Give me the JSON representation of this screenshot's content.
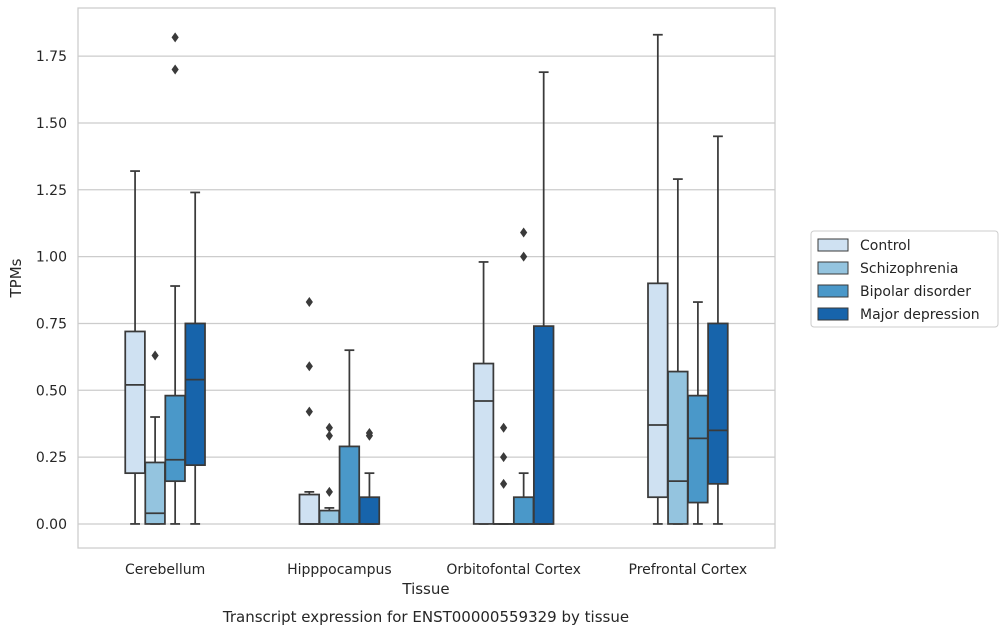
{
  "chart_data": {
    "type": "box",
    "caption": "Transcript expression for ENST00000559329 by tissue",
    "xlabel": "Tissue",
    "ylabel": "TPMs",
    "ylim": [
      -0.09,
      1.93
    ],
    "yticks": [
      "0.00",
      "0.25",
      "0.50",
      "0.75",
      "1.00",
      "1.25",
      "1.50",
      "1.75"
    ],
    "yticks_values": [
      0,
      0.25,
      0.5,
      0.75,
      1.0,
      1.25,
      1.5,
      1.75
    ],
    "grid": "horizontal",
    "legend_position": "right",
    "categories": [
      "Cerebellum",
      "Hipppocampus",
      "Orbitofontal Cortex",
      "Prefrontal Cortex"
    ],
    "series": [
      {
        "name": "Control",
        "color": "#cfe1f2",
        "boxes": [
          {
            "q1": 0.19,
            "median": 0.52,
            "q3": 0.72,
            "whislo": 0.0,
            "whishi": 1.32,
            "fliers": []
          },
          {
            "q1": 0.0,
            "median": 0.0,
            "q3": 0.11,
            "whislo": 0.0,
            "whishi": 0.12,
            "fliers": [
              0.42,
              0.59,
              0.83
            ]
          },
          {
            "q1": 0.0,
            "median": 0.46,
            "q3": 0.6,
            "whislo": 0.0,
            "whishi": 0.98,
            "fliers": []
          },
          {
            "q1": 0.1,
            "median": 0.37,
            "q3": 0.9,
            "whislo": 0.0,
            "whishi": 1.83,
            "fliers": []
          }
        ]
      },
      {
        "name": "Schizophrenia",
        "color": "#94c4df",
        "boxes": [
          {
            "q1": 0.0,
            "median": 0.04,
            "q3": 0.23,
            "whislo": 0.0,
            "whishi": 0.4,
            "fliers": [
              0.63
            ]
          },
          {
            "q1": 0.0,
            "median": 0.0,
            "q3": 0.05,
            "whislo": 0.0,
            "whishi": 0.06,
            "fliers": [
              0.12,
              0.33,
              0.36
            ]
          },
          {
            "q1": 0.0,
            "median": 0.0,
            "q3": 0.0,
            "whislo": 0.0,
            "whishi": 0.0,
            "fliers": [
              0.15,
              0.25,
              0.36
            ]
          },
          {
            "q1": 0.0,
            "median": 0.16,
            "q3": 0.57,
            "whislo": 0.0,
            "whishi": 1.29,
            "fliers": []
          }
        ]
      },
      {
        "name": "Bipolar disorder",
        "color": "#4a98c9",
        "boxes": [
          {
            "q1": 0.16,
            "median": 0.24,
            "q3": 0.48,
            "whislo": 0.0,
            "whishi": 0.89,
            "fliers": [
              1.7,
              1.82
            ]
          },
          {
            "q1": 0.0,
            "median": 0.0,
            "q3": 0.29,
            "whislo": 0.0,
            "whishi": 0.65,
            "fliers": []
          },
          {
            "q1": 0.0,
            "median": 0.0,
            "q3": 0.1,
            "whislo": 0.0,
            "whishi": 0.19,
            "fliers": [
              1.0,
              1.09
            ]
          },
          {
            "q1": 0.08,
            "median": 0.32,
            "q3": 0.48,
            "whislo": 0.0,
            "whishi": 0.83,
            "fliers": []
          }
        ]
      },
      {
        "name": "Major depression",
        "color": "#1764ab",
        "boxes": [
          {
            "q1": 0.22,
            "median": 0.54,
            "q3": 0.75,
            "whislo": 0.0,
            "whishi": 1.24,
            "fliers": []
          },
          {
            "q1": 0.0,
            "median": 0.0,
            "q3": 0.1,
            "whislo": 0.0,
            "whishi": 0.19,
            "fliers": [
              0.33,
              0.34
            ]
          },
          {
            "q1": 0.0,
            "median": 0.0,
            "q3": 0.74,
            "whislo": 0.0,
            "whishi": 1.69,
            "fliers": []
          },
          {
            "q1": 0.15,
            "median": 0.35,
            "q3": 0.75,
            "whislo": 0.0,
            "whishi": 1.45,
            "fliers": []
          }
        ]
      }
    ]
  }
}
